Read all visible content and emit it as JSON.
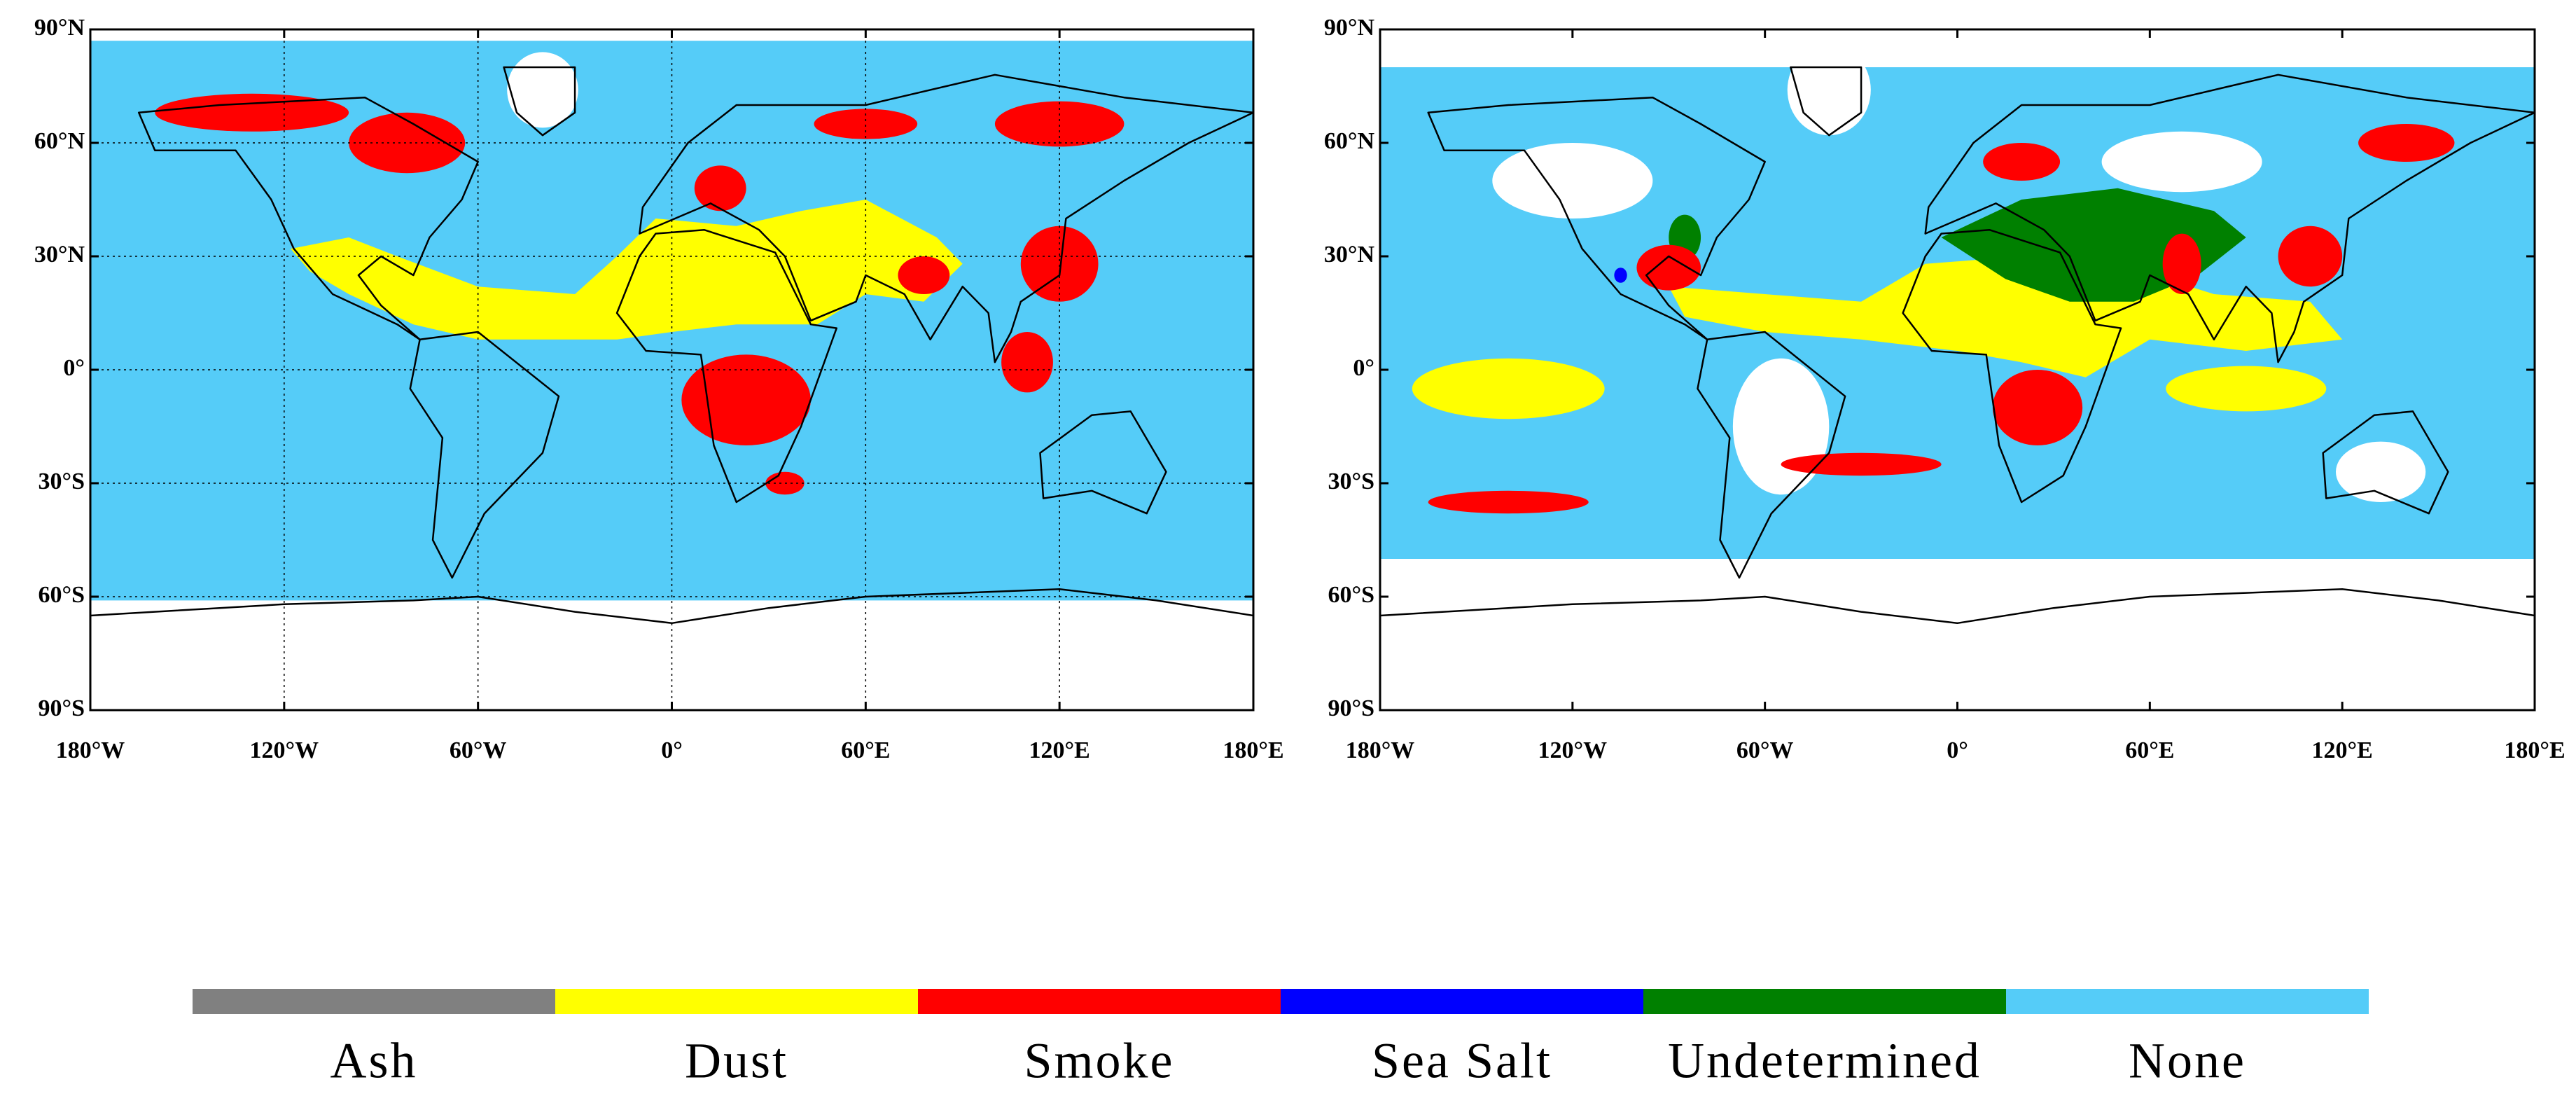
{
  "maps": [
    {
      "xlim": [
        -180,
        180
      ],
      "ylim": [
        -90,
        90
      ],
      "grid": true,
      "xticks": [
        {
          "value": -180,
          "label": "180°W"
        },
        {
          "value": -120,
          "label": "120°W"
        },
        {
          "value": -60,
          "label": "60°W"
        },
        {
          "value": 0,
          "label": "0°"
        },
        {
          "value": 60,
          "label": "60°E"
        },
        {
          "value": 120,
          "label": "120°E"
        },
        {
          "value": 180,
          "label": "180°E"
        }
      ],
      "yticks": [
        {
          "value": 90,
          "label": "90°N"
        },
        {
          "value": 60,
          "label": "60°N"
        },
        {
          "value": 30,
          "label": "30°N"
        },
        {
          "value": 0,
          "label": "0°"
        },
        {
          "value": -30,
          "label": "30°S"
        },
        {
          "value": -60,
          "label": "60°S"
        },
        {
          "value": -90,
          "label": "90°S"
        }
      ]
    },
    {
      "xlim": [
        -180,
        180
      ],
      "ylim": [
        -90,
        90
      ],
      "grid": false,
      "xticks": [
        {
          "value": -180,
          "label": "180°W"
        },
        {
          "value": -120,
          "label": "120°W"
        },
        {
          "value": -60,
          "label": "60°W"
        },
        {
          "value": 0,
          "label": "0°"
        },
        {
          "value": 60,
          "label": "60°E"
        },
        {
          "value": 120,
          "label": "120°E"
        },
        {
          "value": 180,
          "label": "180°E"
        }
      ],
      "yticks": [
        {
          "value": 90,
          "label": "90°N"
        },
        {
          "value": 60,
          "label": "60°N"
        },
        {
          "value": 30,
          "label": "30°N"
        },
        {
          "value": 0,
          "label": "0°"
        },
        {
          "value": -30,
          "label": "30°S"
        },
        {
          "value": -60,
          "label": "60°S"
        },
        {
          "value": -90,
          "label": "90°S"
        }
      ]
    }
  ],
  "legend": [
    {
      "name": "Ash",
      "color": "#808080"
    },
    {
      "name": "Dust",
      "color": "#ffff00"
    },
    {
      "name": "Smoke",
      "color": "#ff0000"
    },
    {
      "name": "Sea Salt",
      "color": "#0000ff"
    },
    {
      "name": "Undetermined",
      "color": "#008000"
    },
    {
      "name": "None",
      "color": "#55ccf8"
    }
  ]
}
